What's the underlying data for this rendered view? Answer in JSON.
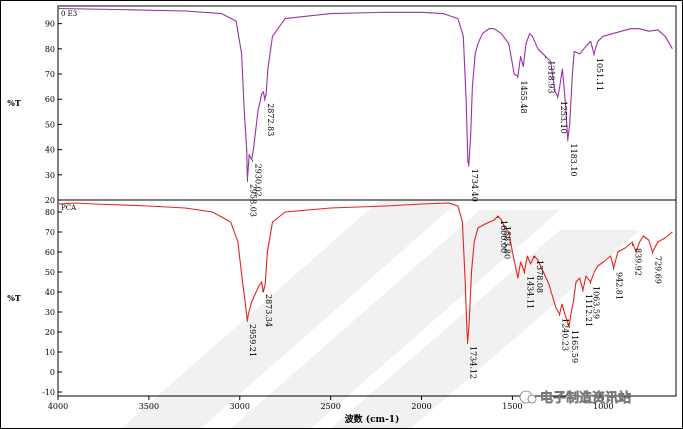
{
  "chart_data": {
    "type": "line",
    "xlabel": "波数 (cm-1)",
    "x_ticks": [
      "4000",
      "3500",
      "3000",
      "2500",
      "2000",
      "1500",
      "1000"
    ],
    "xlim": [
      4000,
      600
    ],
    "watermark": "电子制造资讯站",
    "colors": {
      "top": "#9b30a8",
      "bottom": "#e8231c"
    },
    "panels": [
      {
        "sample_label": "0 E3",
        "ylabel": "%T",
        "ylim": [
          20,
          97
        ],
        "y_ticks": [
          "90",
          "80",
          "70",
          "60",
          "50",
          "40",
          "30",
          "20"
        ],
        "series": [
          {
            "color": "#9b30a8",
            "points": [
              [
                4000,
                96
              ],
              [
                3600,
                95.5
              ],
              [
                3300,
                95
              ],
              [
                3100,
                94
              ],
              [
                3020,
                91
              ],
              [
                2990,
                78
              ],
              [
                2975,
                55
              ],
              [
                2962,
                40
              ],
              [
                2958,
                28
              ],
              [
                2948,
                38
              ],
              [
                2935,
                36
              ],
              [
                2925,
                40
              ],
              [
                2900,
                55
              ],
              [
                2880,
                62
              ],
              [
                2870,
                63
              ],
              [
                2862,
                60
              ],
              [
                2855,
                62
              ],
              [
                2845,
                72
              ],
              [
                2820,
                85
              ],
              [
                2750,
                92
              ],
              [
                2500,
                94
              ],
              [
                2200,
                94.5
              ],
              [
                2000,
                94.5
              ],
              [
                1880,
                94
              ],
              [
                1800,
                92
              ],
              [
                1770,
                85
              ],
              [
                1755,
                60
              ],
              [
                1745,
                35
              ],
              [
                1740,
                34
              ],
              [
                1730,
                45
              ],
              [
                1720,
                65
              ],
              [
                1705,
                78
              ],
              [
                1690,
                82
              ],
              [
                1665,
                86
              ],
              [
                1630,
                88
              ],
              [
                1600,
                88
              ],
              [
                1560,
                86
              ],
              [
                1520,
                82
              ],
              [
                1490,
                70
              ],
              [
                1470,
                69
              ],
              [
                1455,
                77
              ],
              [
                1440,
                73
              ],
              [
                1425,
                82
              ],
              [
                1405,
                86
              ],
              [
                1390,
                85
              ],
              [
                1360,
                80
              ],
              [
                1318,
                77
              ],
              [
                1290,
                75
              ],
              [
                1265,
                63
              ],
              [
                1250,
                61
              ],
              [
                1240,
                65
              ],
              [
                1225,
                72
              ],
              [
                1210,
                60
              ],
              [
                1195,
                44
              ],
              [
                1185,
                50
              ],
              [
                1170,
                70
              ],
              [
                1160,
                79
              ],
              [
                1130,
                78
              ],
              [
                1095,
                81
              ],
              [
                1070,
                83
              ],
              [
                1051,
                78
              ],
              [
                1030,
                83
              ],
              [
                1000,
                85
              ],
              [
                950,
                86
              ],
              [
                900,
                87
              ],
              [
                850,
                88
              ],
              [
                800,
                88
              ],
              [
                750,
                87
              ],
              [
                700,
                87.5
              ],
              [
                660,
                85
              ],
              [
                620,
                80
              ]
            ]
          }
        ],
        "annotations": [
          {
            "x": 2958,
            "y": 28,
            "label": "2958.03"
          },
          {
            "x": 2930,
            "y": 36,
            "label": "2930.02"
          },
          {
            "x": 2862,
            "y": 60,
            "label": "2872.83"
          },
          {
            "x": 1740,
            "y": 34,
            "label": "1734.40"
          },
          {
            "x": 1470,
            "y": 69,
            "label": "1455.48"
          },
          {
            "x": 1318,
            "y": 77,
            "label": "1318.93"
          },
          {
            "x": 1250,
            "y": 61,
            "label": "1253.10"
          },
          {
            "x": 1195,
            "y": 44,
            "label": "1183.10"
          },
          {
            "x": 1051,
            "y": 78,
            "label": "1051.11"
          }
        ]
      },
      {
        "sample_label": "PCA",
        "ylabel": "%T",
        "ylim": [
          -12,
          86
        ],
        "y_ticks": [
          "80",
          "70",
          "60",
          "50",
          "40",
          "30",
          "20",
          "10",
          "0",
          "-10"
        ],
        "series": [
          {
            "color": "#e8231c",
            "points": [
              [
                4000,
                84
              ],
              [
                3900,
                84.5
              ],
              [
                3800,
                84
              ],
              [
                3500,
                83
              ],
              [
                3300,
                82
              ],
              [
                3150,
                80
              ],
              [
                3050,
                75
              ],
              [
                3010,
                65
              ],
              [
                2985,
                45
              ],
              [
                2970,
                35
              ],
              [
                2959,
                26
              ],
              [
                2950,
                30
              ],
              [
                2935,
                35
              ],
              [
                2920,
                38
              ],
              [
                2895,
                43
              ],
              [
                2880,
                45
              ],
              [
                2870,
                40
              ],
              [
                2860,
                44
              ],
              [
                2848,
                60
              ],
              [
                2820,
                75
              ],
              [
                2750,
                80
              ],
              [
                2500,
                82
              ],
              [
                2200,
                83
              ],
              [
                2000,
                84
              ],
              [
                1850,
                84.5
              ],
              [
                1800,
                83
              ],
              [
                1775,
                75
              ],
              [
                1760,
                45
              ],
              [
                1750,
                20
              ],
              [
                1746,
                15
              ],
              [
                1738,
                25
              ],
              [
                1725,
                50
              ],
              [
                1710,
                65
              ],
              [
                1690,
                72
              ],
              [
                1650,
                74
              ],
              [
                1600,
                76
              ],
              [
                1580,
                78
              ],
              [
                1560,
                76
              ],
              [
                1540,
                72
              ],
              [
                1520,
                70
              ],
              [
                1500,
                60
              ],
              [
                1470,
                47
              ],
              [
                1455,
                55
              ],
              [
                1434,
                50
              ],
              [
                1418,
                58
              ],
              [
                1400,
                54
              ],
              [
                1380,
                58
              ],
              [
                1360,
                56
              ],
              [
                1340,
                52
              ],
              [
                1300,
                44
              ],
              [
                1260,
                32
              ],
              [
                1240,
                29
              ],
              [
                1228,
                34
              ],
              [
                1215,
                30
              ],
              [
                1200,
                26
              ],
              [
                1188,
                23
              ],
              [
                1176,
                30
              ],
              [
                1165,
                35
              ],
              [
                1150,
                45
              ],
              [
                1130,
                47
              ],
              [
                1112,
                41
              ],
              [
                1095,
                48
              ],
              [
                1070,
                45
              ],
              [
                1050,
                50
              ],
              [
                1030,
                53
              ],
              [
                1000,
                55
              ],
              [
                960,
                58
              ],
              [
                943,
                52
              ],
              [
                920,
                60
              ],
              [
                880,
                62
              ],
              [
                840,
                65
              ],
              [
                820,
                60
              ],
              [
                800,
                65
              ],
              [
                780,
                68
              ],
              [
                750,
                66
              ],
              [
                729,
                60
              ],
              [
                700,
                65
              ],
              [
                660,
                67
              ],
              [
                620,
                70
              ]
            ]
          }
        ],
        "annotations": [
          {
            "x": 2959,
            "y": 26,
            "label": "2959.21"
          },
          {
            "x": 2873,
            "y": 41,
            "label": "2873.34"
          },
          {
            "x": 1746,
            "y": 15,
            "label": "1734.12"
          },
          {
            "x": 1580,
            "y": 78,
            "label": "1600.00"
          },
          {
            "x": 1560,
            "y": 75,
            "label": "1583.80"
          },
          {
            "x": 1434,
            "y": 50,
            "label": "1434.11"
          },
          {
            "x": 1380,
            "y": 58,
            "label": "1378.08"
          },
          {
            "x": 1240,
            "y": 29,
            "label": "1240.23"
          },
          {
            "x": 1188,
            "y": 23,
            "label": "1165.59"
          },
          {
            "x": 1112,
            "y": 41,
            "label": "1112.21"
          },
          {
            "x": 1070,
            "y": 45,
            "label": "1063.59"
          },
          {
            "x": 943,
            "y": 52,
            "label": "942.81"
          },
          {
            "x": 840,
            "y": 64,
            "label": "839.92"
          },
          {
            "x": 729,
            "y": 60,
            "label": "729.69"
          }
        ]
      }
    ]
  }
}
